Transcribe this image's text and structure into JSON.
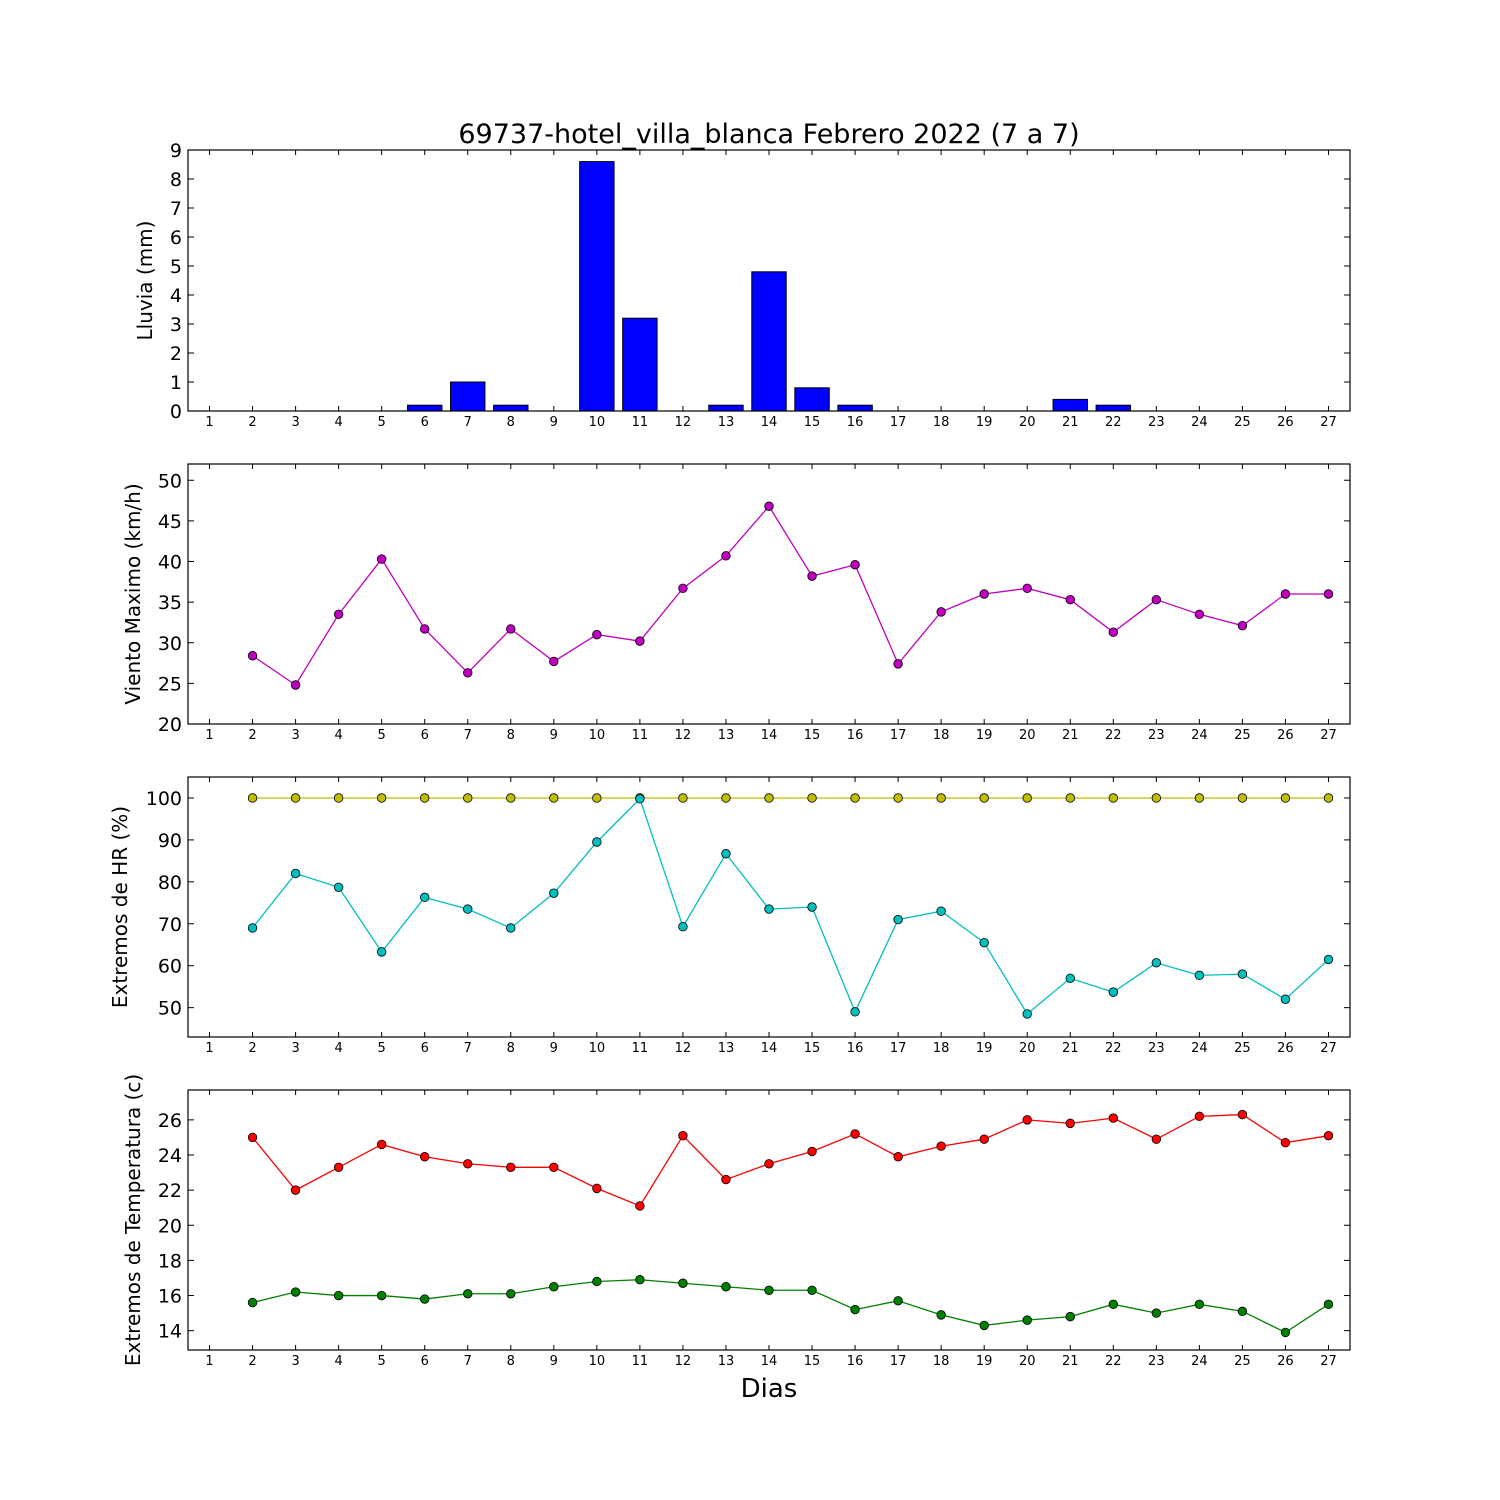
{
  "chart_data": [
    {
      "type": "bar",
      "title": "69737-hotel_villa_blanca Febrero 2022  (7 a 7)",
      "ylabel": "Lluvia (mm)",
      "xlabel": "",
      "ylim": [
        0,
        9
      ],
      "yticks": [
        0,
        1,
        2,
        3,
        4,
        5,
        6,
        7,
        8,
        9
      ],
      "xlim": [
        0.5,
        27.5
      ],
      "categories": [
        1,
        2,
        3,
        4,
        5,
        6,
        7,
        8,
        9,
        10,
        11,
        12,
        13,
        14,
        15,
        16,
        17,
        18,
        19,
        20,
        21,
        22,
        23,
        24,
        25,
        26,
        27
      ],
      "series": [
        {
          "color": "#0000ff",
          "values": [
            0,
            0,
            0,
            0,
            0,
            0.2,
            1.0,
            0.2,
            0,
            8.6,
            3.2,
            0,
            0.2,
            4.8,
            0.8,
            0.2,
            0,
            0,
            0,
            0,
            0.4,
            0.2,
            0,
            0,
            0,
            0,
            0
          ]
        }
      ]
    },
    {
      "type": "line",
      "title": "",
      "ylabel": "Viento Maximo (km/h)",
      "xlabel": "",
      "ylim": [
        20,
        52
      ],
      "yticks": [
        20,
        25,
        30,
        35,
        40,
        45,
        50
      ],
      "xlim": [
        0.5,
        27.5
      ],
      "x": [
        2,
        3,
        4,
        5,
        6,
        7,
        8,
        9,
        10,
        11,
        12,
        13,
        14,
        15,
        16,
        17,
        18,
        19,
        20,
        21,
        22,
        23,
        24,
        25,
        26,
        27
      ],
      "series": [
        {
          "color": "#bf00bf",
          "values": [
            28.4,
            24.8,
            33.5,
            40.3,
            31.7,
            26.3,
            31.7,
            27.7,
            31.0,
            30.2,
            36.7,
            40.7,
            46.8,
            38.2,
            39.6,
            27.4,
            33.8,
            36.0,
            36.7,
            35.3,
            31.3,
            35.3,
            33.5,
            32.1,
            36.0,
            36.0
          ]
        }
      ]
    },
    {
      "type": "line",
      "title": "",
      "ylabel": "Extremos de HR (%)",
      "xlabel": "",
      "ylim": [
        43,
        105
      ],
      "yticks": [
        50,
        60,
        70,
        80,
        90,
        100
      ],
      "xlim": [
        0.5,
        27.5
      ],
      "x": [
        2,
        3,
        4,
        5,
        6,
        7,
        8,
        9,
        10,
        11,
        12,
        13,
        14,
        15,
        16,
        17,
        18,
        19,
        20,
        21,
        22,
        23,
        24,
        25,
        26,
        27
      ],
      "series": [
        {
          "color": "#bfbf00",
          "values": [
            100,
            100,
            100,
            100,
            100,
            100,
            100,
            100,
            100,
            100,
            100,
            100,
            100,
            100,
            100,
            100,
            100,
            100,
            100,
            100,
            100,
            100,
            100,
            100,
            100,
            100
          ]
        },
        {
          "color": "#00bfbf",
          "values": [
            69,
            82,
            78.7,
            63.3,
            76.3,
            73.5,
            69,
            77.3,
            89.5,
            99.8,
            69.3,
            86.7,
            73.5,
            74,
            49,
            71,
            73,
            65.5,
            48.5,
            57,
            53.7,
            60.7,
            57.7,
            58,
            52,
            61.5
          ]
        }
      ]
    },
    {
      "type": "line",
      "title": "",
      "ylabel": "Extremos de Temperatura (c)",
      "xlabel": "Dias",
      "ylim": [
        12.9,
        27.7
      ],
      "yticks": [
        14,
        16,
        18,
        20,
        22,
        24,
        26
      ],
      "xlim": [
        0.5,
        27.5
      ],
      "xticks": [
        1,
        2,
        3,
        4,
        5,
        6,
        7,
        8,
        9,
        10,
        11,
        12,
        13,
        14,
        15,
        16,
        17,
        18,
        19,
        20,
        21,
        22,
        23,
        24,
        25,
        26,
        27
      ],
      "x": [
        2,
        3,
        4,
        5,
        6,
        7,
        8,
        9,
        10,
        11,
        12,
        13,
        14,
        15,
        16,
        17,
        18,
        19,
        20,
        21,
        22,
        23,
        24,
        25,
        26,
        27
      ],
      "series": [
        {
          "color": "#ff0000",
          "values": [
            25.0,
            22.0,
            23.3,
            24.6,
            23.9,
            23.5,
            23.3,
            23.3,
            22.1,
            21.1,
            25.1,
            22.6,
            23.5,
            24.2,
            25.2,
            23.9,
            24.5,
            24.9,
            26.0,
            25.8,
            26.1,
            24.9,
            26.2,
            26.3,
            24.7,
            25.1
          ]
        },
        {
          "color": "#008000",
          "values": [
            15.6,
            16.2,
            16.0,
            16.0,
            15.8,
            16.1,
            16.1,
            16.5,
            16.8,
            16.9,
            16.7,
            16.5,
            16.3,
            16.3,
            15.2,
            15.7,
            14.9,
            14.3,
            14.6,
            14.8,
            15.5,
            15.0,
            15.5,
            15.1,
            13.9,
            15.5
          ]
        }
      ]
    }
  ]
}
